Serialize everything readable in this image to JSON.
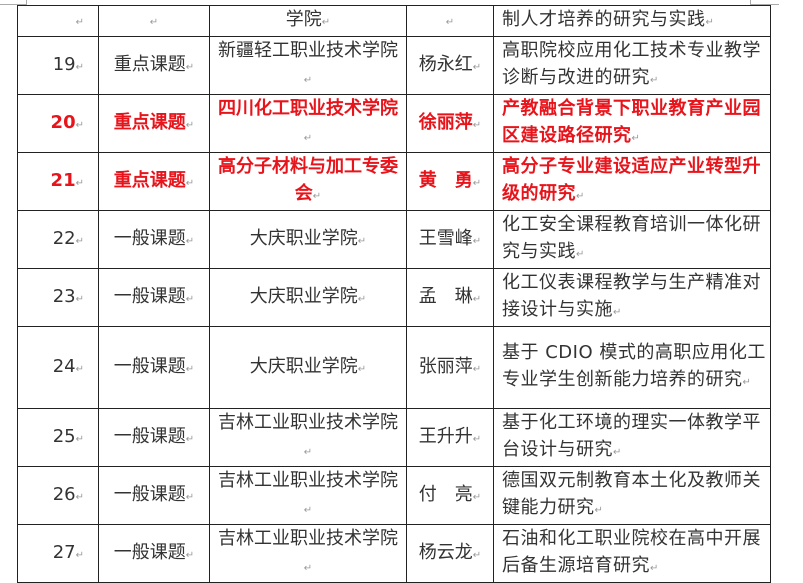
{
  "colors": {
    "highlight": "#e8141b",
    "text": "#333333"
  },
  "rows": [
    {
      "no": "",
      "type": "",
      "unit": "学院",
      "person": "",
      "title": "制人才培养的研究与实践",
      "highlight": false
    },
    {
      "no": "19",
      "type": "重点课题",
      "unit": "新疆轻工职业技术学院",
      "person": "杨永红",
      "title": "高职院校应用化工技术专业教学诊断与改进的研究",
      "highlight": false
    },
    {
      "no": "20",
      "type": "重点课题",
      "unit": "四川化工职业技术学院",
      "person": "徐丽萍",
      "title": "产教融合背景下职业教育产业园区建设路径研究",
      "highlight": true
    },
    {
      "no": "21",
      "type": "重点课题",
      "unit": "高分子材料与加工专委会",
      "person": "黄　勇",
      "title": "高分子专业建设适应产业转型升级的研究",
      "highlight": true
    },
    {
      "no": "22",
      "type": "一般课题",
      "unit": "大庆职业学院",
      "person": "王雪峰",
      "title": "化工安全课程教育培训一体化研究与实践",
      "highlight": false
    },
    {
      "no": "23",
      "type": "一般课题",
      "unit": "大庆职业学院",
      "person": "孟　琳",
      "title": "化工仪表课程教学与生产精准对接设计与实施",
      "highlight": false
    },
    {
      "no": "24",
      "type": "一般课题",
      "unit": "大庆职业学院",
      "person": "张丽萍",
      "title": "基于 CDIO 模式的高职应用化工专业学生创新能力培养的研究",
      "highlight": false
    },
    {
      "no": "25",
      "type": "一般课题",
      "unit": "吉林工业职业技术学院",
      "person": "王升升",
      "title": "基于化工环境的理实一体教学平台设计与研究",
      "highlight": false
    },
    {
      "no": "26",
      "type": "一般课题",
      "unit": "吉林工业职业技术学院",
      "person": "付　亮",
      "title": "德国双元制教育本土化及教师关键能力研究",
      "highlight": false
    },
    {
      "no": "27",
      "type": "一般课题",
      "unit": "吉林工业职业技术学院",
      "person": "杨云龙",
      "title": "石油和化工职业院校在高中开展后备生源培育研究",
      "highlight": false
    }
  ]
}
